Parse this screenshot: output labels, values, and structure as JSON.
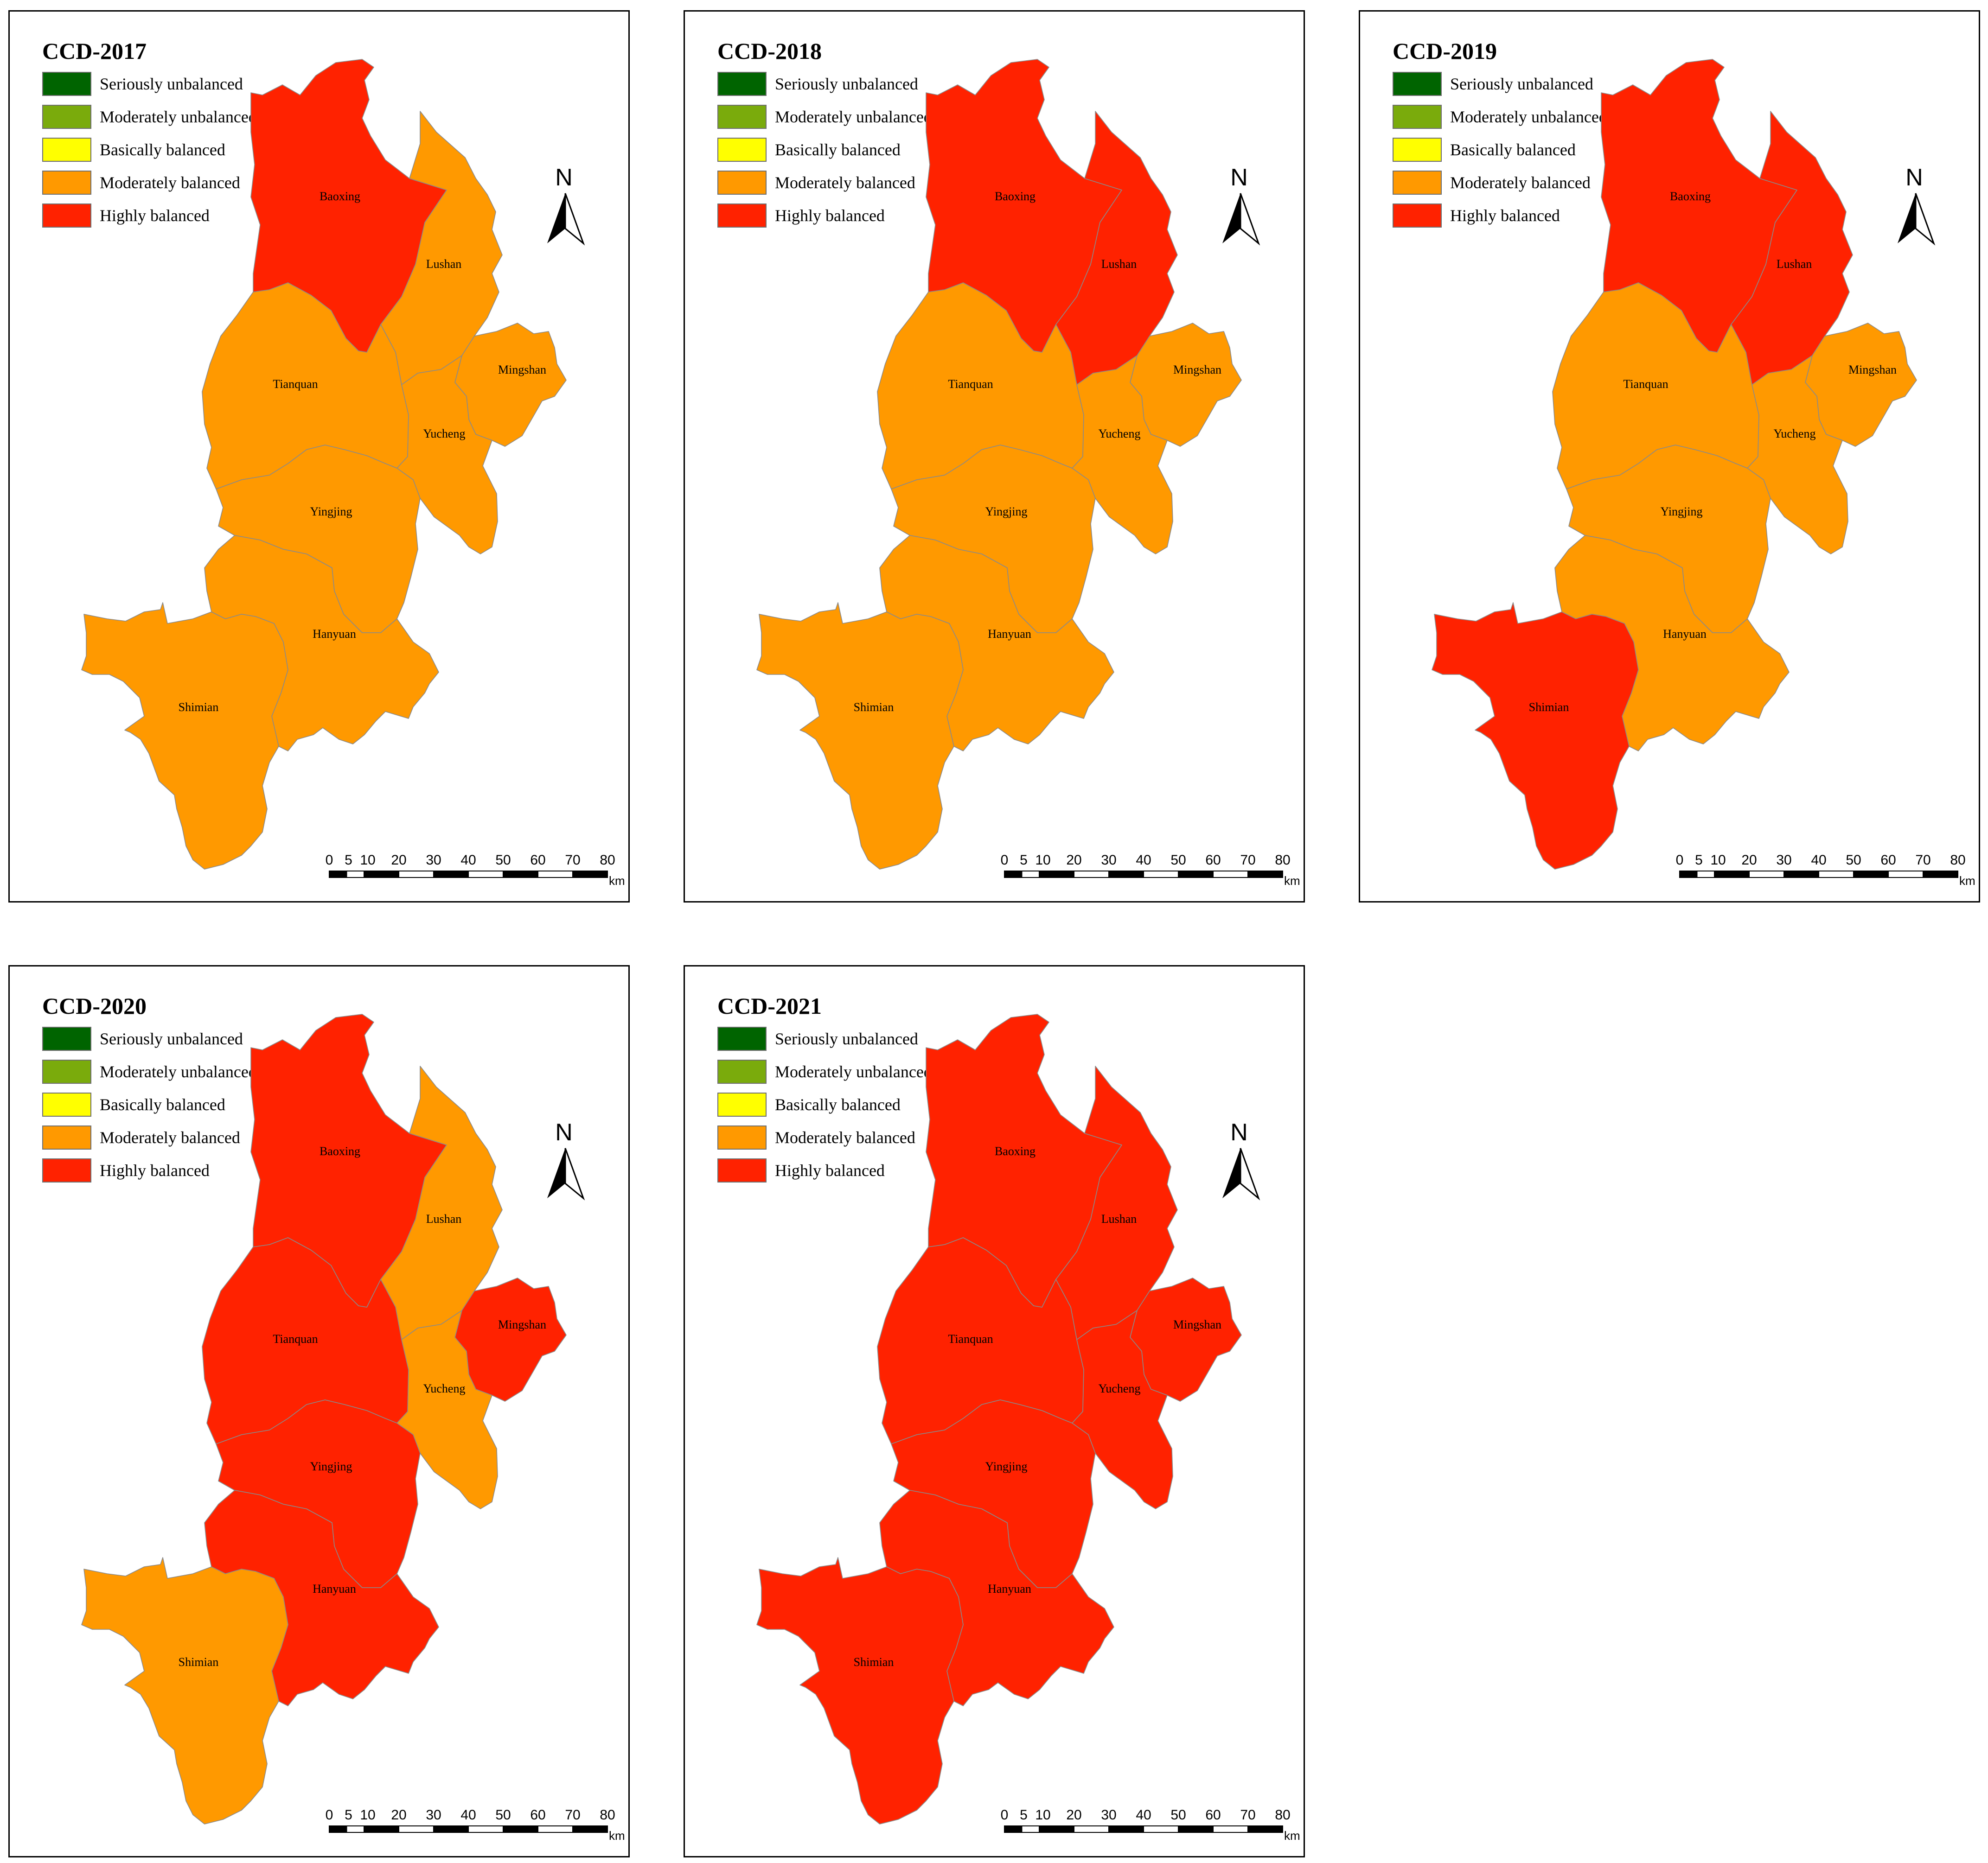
{
  "legend": [
    {
      "label": "Seriously unbalanced",
      "color": "#006400"
    },
    {
      "label": "Moderately unbalanced",
      "color": "#7aab0c"
    },
    {
      "label": "Basically balanced",
      "color": "#ffff00"
    },
    {
      "label": "Moderately balanced",
      "color": "#ff9900"
    },
    {
      "label": "Highly balanced",
      "color": "#ff2200"
    }
  ],
  "counties": [
    "Baoxing",
    "Lushan",
    "Mingshan",
    "Tianquan",
    "Yucheng",
    "Yingjing",
    "Hanyuan",
    "Shimian"
  ],
  "north_arrow": {
    "letter": "N"
  },
  "scale_bar": {
    "ticks": [
      "0",
      "5",
      "10",
      "20",
      "30",
      "40",
      "50",
      "60",
      "70",
      "80"
    ],
    "unit": "km"
  },
  "maps": [
    {
      "title": "CCD-2017",
      "classes": {
        "Baoxing": "Highly balanced",
        "Lushan": "Moderately balanced",
        "Mingshan": "Moderately balanced",
        "Tianquan": "Moderately balanced",
        "Yucheng": "Moderately balanced",
        "Yingjing": "Moderately balanced",
        "Hanyuan": "Moderately balanced",
        "Shimian": "Moderately balanced"
      }
    },
    {
      "title": "CCD-2018",
      "classes": {
        "Baoxing": "Highly balanced",
        "Lushan": "Highly balanced",
        "Mingshan": "Moderately balanced",
        "Tianquan": "Moderately balanced",
        "Yucheng": "Moderately balanced",
        "Yingjing": "Moderately balanced",
        "Hanyuan": "Moderately balanced",
        "Shimian": "Moderately balanced"
      }
    },
    {
      "title": "CCD-2019",
      "classes": {
        "Baoxing": "Highly balanced",
        "Lushan": "Highly balanced",
        "Mingshan": "Moderately balanced",
        "Tianquan": "Moderately balanced",
        "Yucheng": "Moderately balanced",
        "Yingjing": "Moderately balanced",
        "Hanyuan": "Moderately balanced",
        "Shimian": "Highly balanced"
      }
    },
    {
      "title": "CCD-2020",
      "classes": {
        "Baoxing": "Highly balanced",
        "Lushan": "Moderately balanced",
        "Mingshan": "Highly balanced",
        "Tianquan": "Highly balanced",
        "Yucheng": "Moderately balanced",
        "Yingjing": "Highly balanced",
        "Hanyuan": "Highly balanced",
        "Shimian": "Moderately balanced"
      }
    },
    {
      "title": "CCD-2021",
      "classes": {
        "Baoxing": "Highly balanced",
        "Lushan": "Highly balanced",
        "Mingshan": "Highly balanced",
        "Tianquan": "Highly balanced",
        "Yucheng": "Highly balanced",
        "Yingjing": "Highly balanced",
        "Hanyuan": "Highly balanced",
        "Shimian": "Highly balanced"
      }
    }
  ]
}
